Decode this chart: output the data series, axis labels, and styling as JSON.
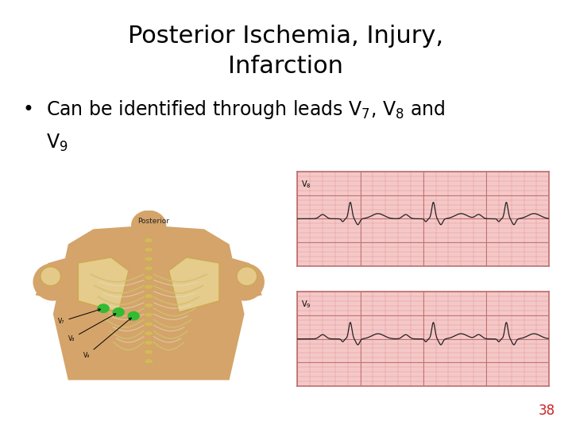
{
  "title_line1": "Posterior Ischemia, Injury,",
  "title_line2": "Infarction",
  "slide_bg": "#ffffff",
  "title_color": "#000000",
  "bullet_color": "#000000",
  "page_number": "38",
  "page_number_color": "#cc2222",
  "title_fontsize": 22,
  "bullet_fontsize": 17,
  "page_num_fontsize": 12,
  "skin_color": "#d4a46a",
  "skin_dark": "#c08848",
  "bone_color": "#e8d090",
  "bone_edge": "#c8a840",
  "spine_color": "#d4b860",
  "rib_color": "#d0c070",
  "green_dot": "#33bb33",
  "ecg_bg": "#f5c8c8",
  "ecg_grid_light": "#e09090",
  "ecg_grid_dark": "#c07070",
  "ecg_line": "#222222",
  "label_color": "#111111"
}
